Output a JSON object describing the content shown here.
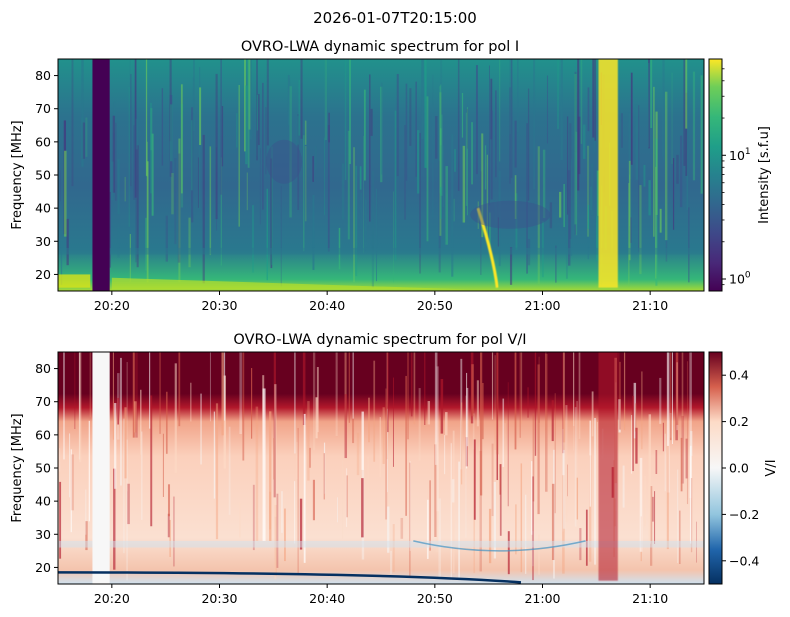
{
  "suptitle": "2026-01-07T20:15:00",
  "chart_data": [
    {
      "type": "heatmap",
      "title": "OVRO-LWA dynamic spectrum for pol I",
      "xlabel": "",
      "ylabel": "Frequency [MHz]",
      "x_range": [
        "20:15",
        "21:15"
      ],
      "xticks": [
        "20:20",
        "20:30",
        "20:40",
        "20:50",
        "21:00",
        "21:10"
      ],
      "ylim": [
        15,
        85
      ],
      "yticks": [
        20,
        30,
        40,
        50,
        60,
        70,
        80
      ],
      "colormap": "viridis",
      "color_scale": "log",
      "clim": [
        0.8,
        60
      ],
      "colorbar_label": "Intensity [s.f.u]",
      "colorbar_ticks": [
        "10^0",
        "10^1"
      ],
      "features": [
        {
          "note": "data gap (minimum intensity)",
          "time_range": [
            "20:18",
            "20:20"
          ]
        },
        {
          "note": "strong broadband burst",
          "time_range": [
            "21:05",
            "21:07"
          ]
        },
        {
          "note": "drifting burst",
          "time": "20:55"
        }
      ]
    },
    {
      "type": "heatmap",
      "title": "OVRO-LWA dynamic spectrum for pol V/I",
      "xlabel": "",
      "ylabel": "Frequency [MHz]",
      "x_range": [
        "20:15",
        "21:15"
      ],
      "xticks": [
        "20:20",
        "20:30",
        "20:40",
        "20:50",
        "21:00",
        "21:10"
      ],
      "ylim": [
        15,
        85
      ],
      "yticks": [
        20,
        30,
        40,
        50,
        60,
        70,
        80
      ],
      "colormap": "RdBu_r",
      "color_scale": "linear",
      "clim": [
        -0.5,
        0.5
      ],
      "colorbar_label": "V/I",
      "colorbar_ticks": [
        "−0.4",
        "−0.2",
        "0.0",
        "0.2",
        "0.4"
      ]
    }
  ]
}
